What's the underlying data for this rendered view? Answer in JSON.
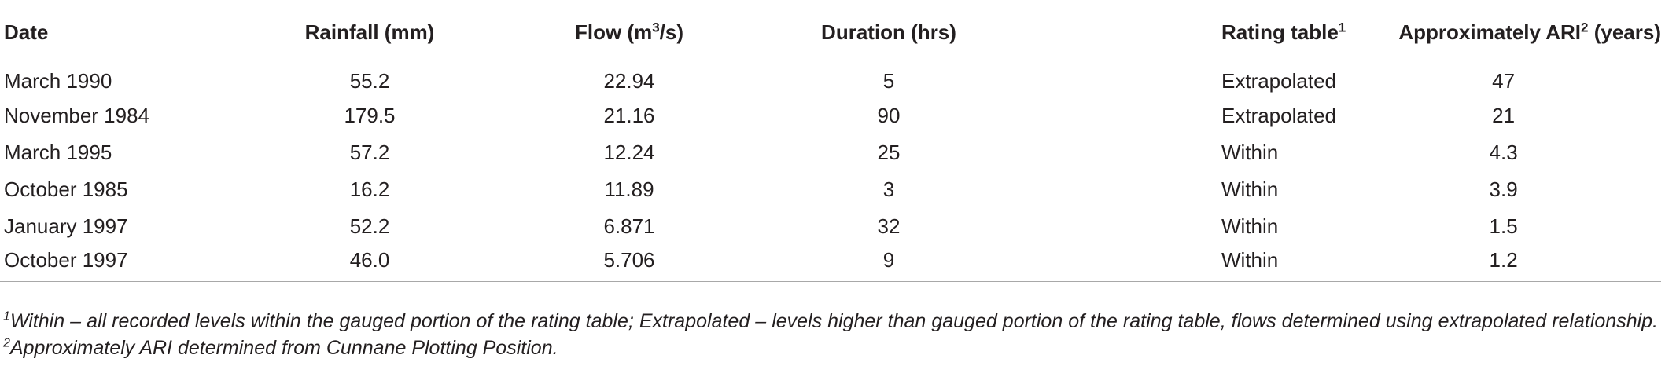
{
  "table": {
    "headers": {
      "date": "Date",
      "rainfall": "Rainfall (mm)",
      "flow_prefix": "Flow (m",
      "flow_sup": "3",
      "flow_suffix": "/s)",
      "duration": "Duration (hrs)",
      "rating_table": "Rating table",
      "rating_table_sup": "1",
      "ari_prefix": "Approximately ARI",
      "ari_sup": "2",
      "ari_suffix": " (years)"
    },
    "rows": [
      {
        "date": "March 1990",
        "rainfall": "55.2",
        "flow": "22.94",
        "duration": "5",
        "rating_table": "Extrapolated",
        "ari": "47"
      },
      {
        "date": "November 1984",
        "rainfall": "179.5",
        "flow": "21.16",
        "duration": "90",
        "rating_table": "Extrapolated",
        "ari": "21"
      },
      {
        "date": "March 1995",
        "rainfall": "57.2",
        "flow": "12.24",
        "duration": "25",
        "rating_table": "Within",
        "ari": "4.3"
      },
      {
        "date": "October 1985",
        "rainfall": "16.2",
        "flow": "11.89",
        "duration": "3",
        "rating_table": "Within",
        "ari": "3.9"
      },
      {
        "date": "January 1997",
        "rainfall": "52.2",
        "flow": "6.871",
        "duration": "32",
        "rating_table": "Within",
        "ari": "1.5"
      },
      {
        "date": "October 1997",
        "rainfall": "46.0",
        "flow": "5.706",
        "duration": "9",
        "rating_table": "Within",
        "ari": "1.2"
      }
    ]
  },
  "footnote": {
    "sup1": "1",
    "text1": "Within – all recorded levels within the gauged portion of the rating table; Extrapolated – levels higher than gauged portion of the rating table, flows determined using extrapolated relationship. ",
    "sup2": "2",
    "text2": "Approximately ARI determined from Cunnane Plotting Position."
  },
  "colors": {
    "text": "#231f20",
    "rule": "#a8a8a8",
    "background": "#ffffff"
  }
}
